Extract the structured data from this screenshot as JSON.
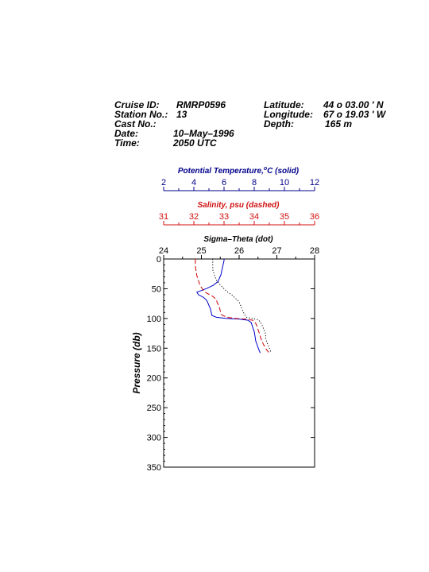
{
  "header": {
    "cruise_label": "Cruise ID:",
    "cruise_value": "RMRP0596",
    "station_label": "Station No.:",
    "station_value": "13",
    "cast_label": "Cast No.:",
    "cast_value": "",
    "date_label": "Date:",
    "date_value": "10–May–1996",
    "time_label": "Time:",
    "time_value": "2050 UTC",
    "lat_label": "Latitude:",
    "lat_value": "44 o 03.00 ' N",
    "lon_label": "Longitude:",
    "lon_value": "67 o 19.03 ' W",
    "depth_label": "Depth:",
    "depth_value": "165 m"
  },
  "chart_data": {
    "type": "line",
    "ylabel": "Pressure (db)",
    "ylim": [
      0,
      350
    ],
    "yticks": [
      0,
      50,
      100,
      150,
      200,
      250,
      300,
      350
    ],
    "y_inverted": true,
    "axes": [
      {
        "id": "temp",
        "label": "Potential Temperature,",
        "label_sup": "o",
        "label_end": "C (solid)",
        "color": "#00008b",
        "range": [
          2,
          12
        ],
        "ticks": [
          2,
          4,
          6,
          8,
          10,
          12
        ]
      },
      {
        "id": "sal",
        "label": "Salinity, psu  (dashed)",
        "color": "#d01010",
        "range": [
          31,
          36
        ],
        "ticks": [
          31,
          32,
          33,
          34,
          35,
          36
        ]
      },
      {
        "id": "sig",
        "label": "Sigma–Theta (dot)",
        "color": "#000000",
        "range": [
          24,
          28
        ],
        "ticks": [
          24,
          25,
          26,
          27,
          28
        ]
      }
    ],
    "series": [
      {
        "axis": "temp",
        "style": "solid",
        "color": "#0000cc",
        "points": [
          [
            6.0,
            0
          ],
          [
            6.0,
            3
          ],
          [
            5.95,
            8
          ],
          [
            5.9,
            14
          ],
          [
            5.85,
            20
          ],
          [
            5.8,
            26
          ],
          [
            5.7,
            32
          ],
          [
            5.6,
            38
          ],
          [
            5.3,
            44
          ],
          [
            4.9,
            49
          ],
          [
            4.5,
            53
          ],
          [
            4.2,
            56
          ],
          [
            4.3,
            60
          ],
          [
            4.6,
            64
          ],
          [
            4.8,
            68
          ],
          [
            4.9,
            72
          ],
          [
            5.0,
            78
          ],
          [
            5.1,
            84
          ],
          [
            5.15,
            90
          ],
          [
            5.2,
            95
          ],
          [
            5.5,
            98
          ],
          [
            6.2,
            100
          ],
          [
            7.0,
            101
          ],
          [
            7.6,
            103
          ],
          [
            7.8,
            107
          ],
          [
            7.9,
            115
          ],
          [
            8.0,
            122
          ],
          [
            8.05,
            130
          ],
          [
            8.1,
            138
          ],
          [
            8.2,
            145
          ],
          [
            8.3,
            152
          ],
          [
            8.4,
            158
          ]
        ]
      },
      {
        "axis": "sal",
        "style": "dashed",
        "color": "#cc0000",
        "points": [
          [
            32.05,
            0
          ],
          [
            32.05,
            5
          ],
          [
            32.05,
            12
          ],
          [
            32.07,
            20
          ],
          [
            32.1,
            28
          ],
          [
            32.15,
            36
          ],
          [
            32.2,
            44
          ],
          [
            32.28,
            50
          ],
          [
            32.35,
            55
          ],
          [
            32.45,
            58
          ],
          [
            32.6,
            62
          ],
          [
            32.7,
            66
          ],
          [
            32.75,
            70
          ],
          [
            32.8,
            76
          ],
          [
            32.85,
            82
          ],
          [
            32.88,
            88
          ],
          [
            32.92,
            94
          ],
          [
            33.1,
            98
          ],
          [
            33.4,
            100
          ],
          [
            33.7,
            101
          ],
          [
            33.95,
            103
          ],
          [
            34.05,
            108
          ],
          [
            34.1,
            115
          ],
          [
            34.15,
            122
          ],
          [
            34.2,
            130
          ],
          [
            34.25,
            138
          ],
          [
            34.32,
            145
          ],
          [
            34.4,
            152
          ],
          [
            34.5,
            158
          ]
        ]
      },
      {
        "axis": "sig",
        "style": "dotted",
        "color": "#000000",
        "points": [
          [
            25.3,
            0
          ],
          [
            25.3,
            8
          ],
          [
            25.3,
            18
          ],
          [
            25.35,
            28
          ],
          [
            25.4,
            36
          ],
          [
            25.5,
            44
          ],
          [
            25.6,
            50
          ],
          [
            25.7,
            56
          ],
          [
            25.8,
            60
          ],
          [
            25.9,
            66
          ],
          [
            26.0,
            72
          ],
          [
            26.05,
            80
          ],
          [
            26.1,
            88
          ],
          [
            26.15,
            94
          ],
          [
            26.2,
            98
          ],
          [
            26.35,
            100
          ],
          [
            26.5,
            102
          ],
          [
            26.55,
            105
          ],
          [
            26.6,
            110
          ],
          [
            26.65,
            118
          ],
          [
            26.7,
            126
          ],
          [
            26.7,
            134
          ],
          [
            26.75,
            142
          ],
          [
            26.8,
            150
          ],
          [
            26.85,
            158
          ]
        ]
      }
    ]
  }
}
